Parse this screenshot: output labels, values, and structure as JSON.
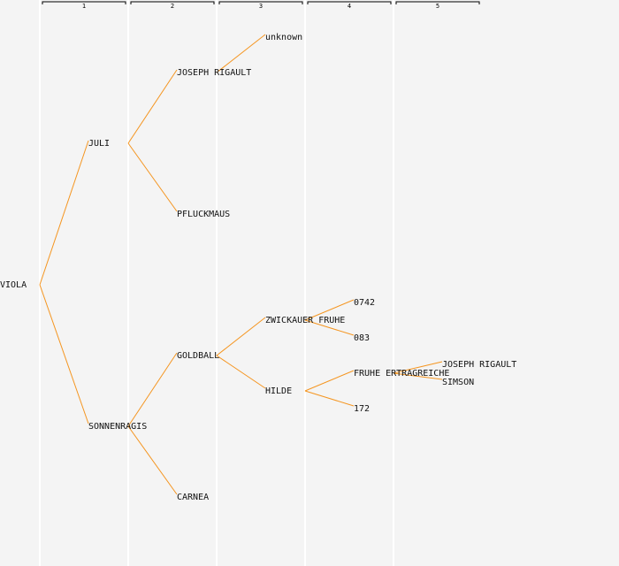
{
  "generations": [
    "1",
    "2",
    "3",
    "4",
    "5"
  ],
  "nodes": [
    {
      "id": "viola",
      "label": "VIOLA",
      "gen": 0,
      "parent": null
    },
    {
      "id": "juli",
      "label": "JULI",
      "gen": 1,
      "parent": "viola"
    },
    {
      "id": "sonnenragis",
      "label": "SONNENRAGIS",
      "gen": 1,
      "parent": "viola"
    },
    {
      "id": "joseph-rigault-1",
      "label": "JOSEPH RIGAULT",
      "gen": 2,
      "parent": "juli"
    },
    {
      "id": "pfluckmaus",
      "label": "PFLUCKMAUS",
      "gen": 2,
      "parent": "juli"
    },
    {
      "id": "goldball",
      "label": "GOLDBALL",
      "gen": 2,
      "parent": "sonnenragis"
    },
    {
      "id": "carnea",
      "label": "CARNEA",
      "gen": 2,
      "parent": "sonnenragis"
    },
    {
      "id": "unknown",
      "label": "unknown",
      "gen": 3,
      "parent": "joseph-rigault-1"
    },
    {
      "id": "zwickauer-fruhe",
      "label": "ZWICKAUER FRUHE",
      "gen": 3,
      "parent": "goldball"
    },
    {
      "id": "hilde",
      "label": "HILDE",
      "gen": 3,
      "parent": "goldball"
    },
    {
      "id": "n0742",
      "label": "0742",
      "gen": 4,
      "parent": "zwickauer-fruhe"
    },
    {
      "id": "n083",
      "label": "083",
      "gen": 4,
      "parent": "zwickauer-fruhe"
    },
    {
      "id": "fruhe-ertragreiche",
      "label": "FRUHE ERTRAGREICHE",
      "gen": 4,
      "parent": "hilde"
    },
    {
      "id": "n172",
      "label": "172",
      "gen": 4,
      "parent": "hilde"
    },
    {
      "id": "joseph-rigault-2",
      "label": "JOSEPH RIGAULT",
      "gen": 5,
      "parent": "fruhe-ertragreiche"
    },
    {
      "id": "simson",
      "label": "SIMSON",
      "gen": 5,
      "parent": "fruhe-ertragreiche"
    }
  ],
  "colors": {
    "edge": "#f5951f",
    "background": "#f4f4f4",
    "column_line": "#ffffff"
  }
}
